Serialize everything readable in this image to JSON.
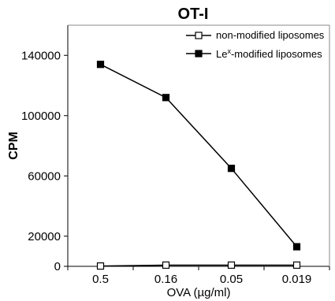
{
  "chart_data": {
    "type": "line",
    "title": "OT-I",
    "xlabel": "OVA (µg/ml)",
    "ylabel": "CPM",
    "categories": [
      "0.5",
      "0.16",
      "0.05",
      "0.019"
    ],
    "ylim": [
      0,
      160000
    ],
    "yticks": [
      0,
      20000,
      60000,
      100000,
      140000
    ],
    "grid": false,
    "legend_position": "top-right",
    "series": [
      {
        "name": "non-modified liposomes",
        "marker": "open-square",
        "values": [
          200,
          800,
          800,
          800
        ]
      },
      {
        "name_prefix": "Le",
        "name_superscript": "x",
        "name_suffix": "-modified liposomes",
        "marker": "filled-square",
        "values": [
          134000,
          112000,
          65000,
          13000
        ]
      }
    ]
  }
}
